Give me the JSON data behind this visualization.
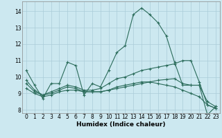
{
  "xlabel": "Humidex (Indice chaleur)",
  "bg_color": "#cce8f0",
  "grid_color": "#aaccd8",
  "line_color": "#2a6b5a",
  "xlim": [
    -0.5,
    23.5
  ],
  "ylim": [
    7.8,
    14.6
  ],
  "yticks": [
    8,
    9,
    10,
    11,
    12,
    13,
    14
  ],
  "xticks": [
    0,
    1,
    2,
    3,
    4,
    5,
    6,
    7,
    8,
    9,
    10,
    11,
    12,
    13,
    14,
    15,
    16,
    17,
    18,
    19,
    20,
    21,
    22,
    23
  ],
  "lines": [
    {
      "x": [
        0,
        1,
        2,
        3,
        4,
        5,
        6,
        7,
        8,
        9,
        10,
        11,
        12,
        13,
        14,
        15,
        16,
        17,
        18,
        19,
        20,
        21,
        22,
        23
      ],
      "y": [
        10.4,
        9.5,
        8.7,
        9.6,
        9.6,
        10.9,
        10.7,
        8.9,
        9.6,
        9.4,
        10.4,
        11.5,
        11.9,
        13.8,
        14.2,
        13.8,
        13.3,
        12.5,
        10.9,
        9.5,
        9.5,
        9.5,
        7.7,
        8.2
      ]
    },
    {
      "x": [
        0,
        1,
        2,
        3,
        4,
        5,
        6,
        7,
        8,
        9,
        10,
        11,
        12,
        13,
        14,
        15,
        16,
        17,
        18,
        19,
        20,
        21,
        22,
        23
      ],
      "y": [
        9.3,
        9.0,
        8.8,
        8.9,
        9.1,
        9.2,
        9.2,
        9.1,
        9.1,
        9.1,
        9.2,
        9.3,
        9.4,
        9.5,
        9.6,
        9.7,
        9.8,
        9.85,
        9.9,
        9.6,
        9.5,
        9.5,
        8.5,
        8.2
      ]
    },
    {
      "x": [
        0,
        1,
        2,
        3,
        4,
        5,
        6,
        7,
        8,
        9,
        10,
        11,
        12,
        13,
        14,
        15,
        16,
        17,
        18,
        19,
        20,
        21,
        22,
        23
      ],
      "y": [
        9.8,
        9.2,
        8.9,
        9.1,
        9.3,
        9.5,
        9.4,
        9.2,
        9.2,
        9.3,
        9.6,
        9.9,
        10.0,
        10.2,
        10.4,
        10.5,
        10.6,
        10.7,
        10.8,
        11.0,
        11.0,
        9.7,
        8.3,
        8.1
      ]
    },
    {
      "x": [
        0,
        1,
        2,
        3,
        4,
        5,
        6,
        7,
        8,
        9,
        10,
        11,
        12,
        13,
        14,
        15,
        16,
        17,
        18,
        19,
        20,
        21,
        22,
        23
      ],
      "y": [
        9.6,
        9.1,
        8.9,
        9.0,
        9.2,
        9.4,
        9.3,
        9.1,
        9.1,
        9.1,
        9.2,
        9.4,
        9.5,
        9.6,
        9.7,
        9.7,
        9.6,
        9.5,
        9.4,
        9.2,
        9.0,
        8.8,
        8.3,
        8.1
      ]
    }
  ]
}
